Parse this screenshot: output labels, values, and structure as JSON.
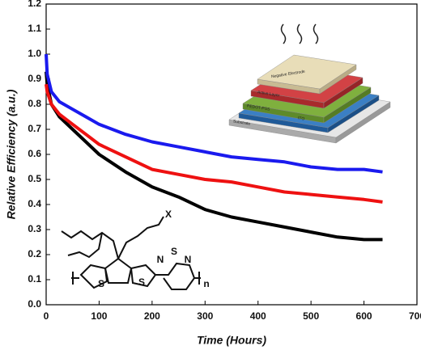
{
  "chart_data": {
    "type": "line",
    "x_label": "Time (Hours)",
    "y_label": "Relative Efficiency (a.u.)",
    "x": [
      0,
      2,
      10,
      25,
      50,
      75,
      100,
      150,
      200,
      250,
      300,
      350,
      400,
      450,
      500,
      550,
      600,
      635
    ],
    "series": [
      {
        "color": "#000000",
        "values": [
          0.93,
          0.88,
          0.8,
          0.75,
          0.7,
          0.65,
          0.6,
          0.53,
          0.47,
          0.43,
          0.38,
          0.35,
          0.33,
          0.31,
          0.29,
          0.27,
          0.26,
          0.26
        ]
      },
      {
        "color": "#ee1111",
        "values": [
          0.88,
          0.85,
          0.8,
          0.76,
          0.72,
          0.68,
          0.64,
          0.59,
          0.54,
          0.52,
          0.5,
          0.49,
          0.47,
          0.45,
          0.44,
          0.43,
          0.42,
          0.41
        ]
      },
      {
        "color": "#1a1aee",
        "values": [
          1.0,
          0.92,
          0.85,
          0.81,
          0.78,
          0.75,
          0.72,
          0.68,
          0.65,
          0.63,
          0.61,
          0.59,
          0.58,
          0.57,
          0.55,
          0.54,
          0.54,
          0.53
        ]
      }
    ],
    "xlim": [
      0,
      700
    ],
    "xticks": [
      0,
      100,
      200,
      300,
      400,
      500,
      600,
      700
    ],
    "ylim": [
      0,
      1.2
    ],
    "yticks": [
      {
        "value": 0,
        "label": "0.0"
      },
      0.1,
      0.2,
      0.3,
      0.4,
      0.5,
      0.6,
      0.7,
      0.8,
      0.9,
      {
        "value": 1,
        "label": "1.0"
      },
      1.1,
      1.2
    ],
    "device_layers": [
      "Negative Electrode",
      "Active Layer",
      "PEDOT-PSS",
      "ITO",
      "Substrate"
    ],
    "structure_labels": [
      "X",
      "N",
      "S",
      "N",
      "S",
      "S",
      "n"
    ]
  }
}
